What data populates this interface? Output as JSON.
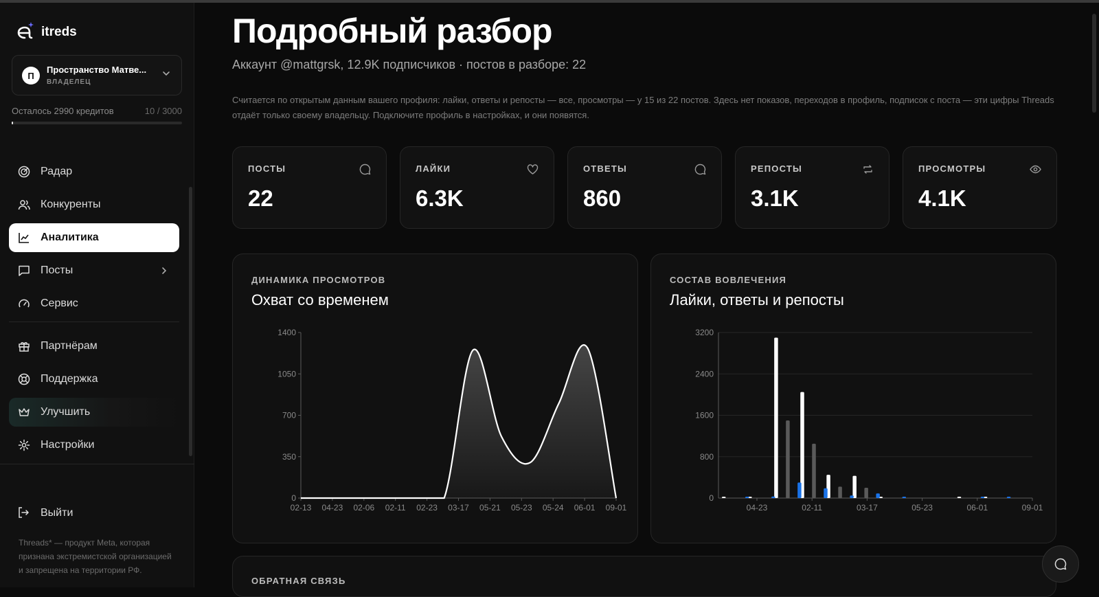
{
  "brand": {
    "name": "itreds"
  },
  "workspace": {
    "avatar_letter": "П",
    "name": "Пространство Матве...",
    "role": "ВЛАДЕЛЕЦ"
  },
  "credits": {
    "label": "Осталось 2990 кредитов",
    "count": "10 / 3000",
    "used_fraction": 0.0033
  },
  "nav": {
    "radar": "Радар",
    "competitors": "Конкуренты",
    "analytics": "Аналитика",
    "posts": "Посты",
    "service": "Сервис",
    "partners": "Партнёрам",
    "support": "Поддержка",
    "upgrade": "Улучшить",
    "settings": "Настройки",
    "logout": "Выйти"
  },
  "disclaimer": "Threads* — продукт Meta, которая признана экстремистской организацией и запрещена на территории РФ.",
  "page": {
    "title": "Подробный разбор",
    "subtitle": "Аккаунт @mattgrsk, 12.9K подписчиков · постов в разборе: 22",
    "note": "Считается по открытым данным вашего профиля: лайки, ответы и репосты — все, просмотры — у 15 из 22 постов. Здесь нет показов, переходов в профиль, подписок с поста — эти цифры Threads отдаёт только своему владельцу. Подключите профиль в настройках, и они появятся."
  },
  "stats": [
    {
      "label": "ПОСТЫ",
      "value": "22",
      "icon": "chat-bubble-icon"
    },
    {
      "label": "ЛАЙКИ",
      "value": "6.3K",
      "icon": "heart-icon"
    },
    {
      "label": "ОТВЕТЫ",
      "value": "860",
      "icon": "reply-bubble-icon"
    },
    {
      "label": "РЕПОСТЫ",
      "value": "3.1K",
      "icon": "repost-icon"
    },
    {
      "label": "ПРОСМОТРЫ",
      "value": "4.1K",
      "icon": "eye-icon"
    }
  ],
  "views_card": {
    "eyebrow": "ДИНАМИКА ПРОСМОТРОВ",
    "title": "Охват со временем"
  },
  "engagement_card": {
    "eyebrow": "СОСТАВ ВОВЛЕЧЕНИЯ",
    "title": "Лайки, ответы и репосты"
  },
  "feedback": {
    "eyebrow": "ОБРАТНАЯ СВЯЗЬ"
  },
  "colors": {
    "accent_blue": "#1a73e8",
    "series_white": "#ffffff",
    "series_gray": "#5a5a5a",
    "active_nav_bg": "#ffffff"
  },
  "chart_data": [
    {
      "type": "area",
      "title": "Охват со временем",
      "x_ticks": [
        "02-13",
        "04-23",
        "02-06",
        "02-11",
        "02-23",
        "03-17",
        "05-21",
        "05-23",
        "05-24",
        "06-01",
        "09-01"
      ],
      "y_ticks": [
        0,
        350,
        700,
        1050,
        1400
      ],
      "ylim": [
        0,
        1400
      ],
      "grid": false,
      "series": [
        {
          "values": [
            0,
            0,
            0,
            0,
            0,
            0,
            1250,
            520,
            300,
            800,
            1270,
            0
          ]
        }
      ]
    },
    {
      "type": "bar",
      "title": "Лайки, ответы и репосты",
      "x_ticks": [
        "04-23",
        "02-11",
        "03-17",
        "05-23",
        "06-01",
        "09-01"
      ],
      "y_ticks": [
        0,
        800,
        1600,
        2400,
        3200
      ],
      "ylim": [
        0,
        3200
      ],
      "grid": true,
      "groups": 12,
      "series": [
        {
          "color": "#ffffff",
          "values": [
            20,
            20,
            3100,
            2050,
            450,
            430,
            20,
            0,
            0,
            20,
            20,
            0
          ]
        },
        {
          "color": "#5a5a5a",
          "values": [
            0,
            0,
            1500,
            1050,
            220,
            200,
            0,
            0,
            0,
            0,
            0,
            0
          ]
        },
        {
          "color": "#1a73e8",
          "values": [
            20,
            30,
            300,
            190,
            50,
            90,
            20,
            0,
            0,
            20,
            20,
            0
          ]
        }
      ]
    }
  ]
}
